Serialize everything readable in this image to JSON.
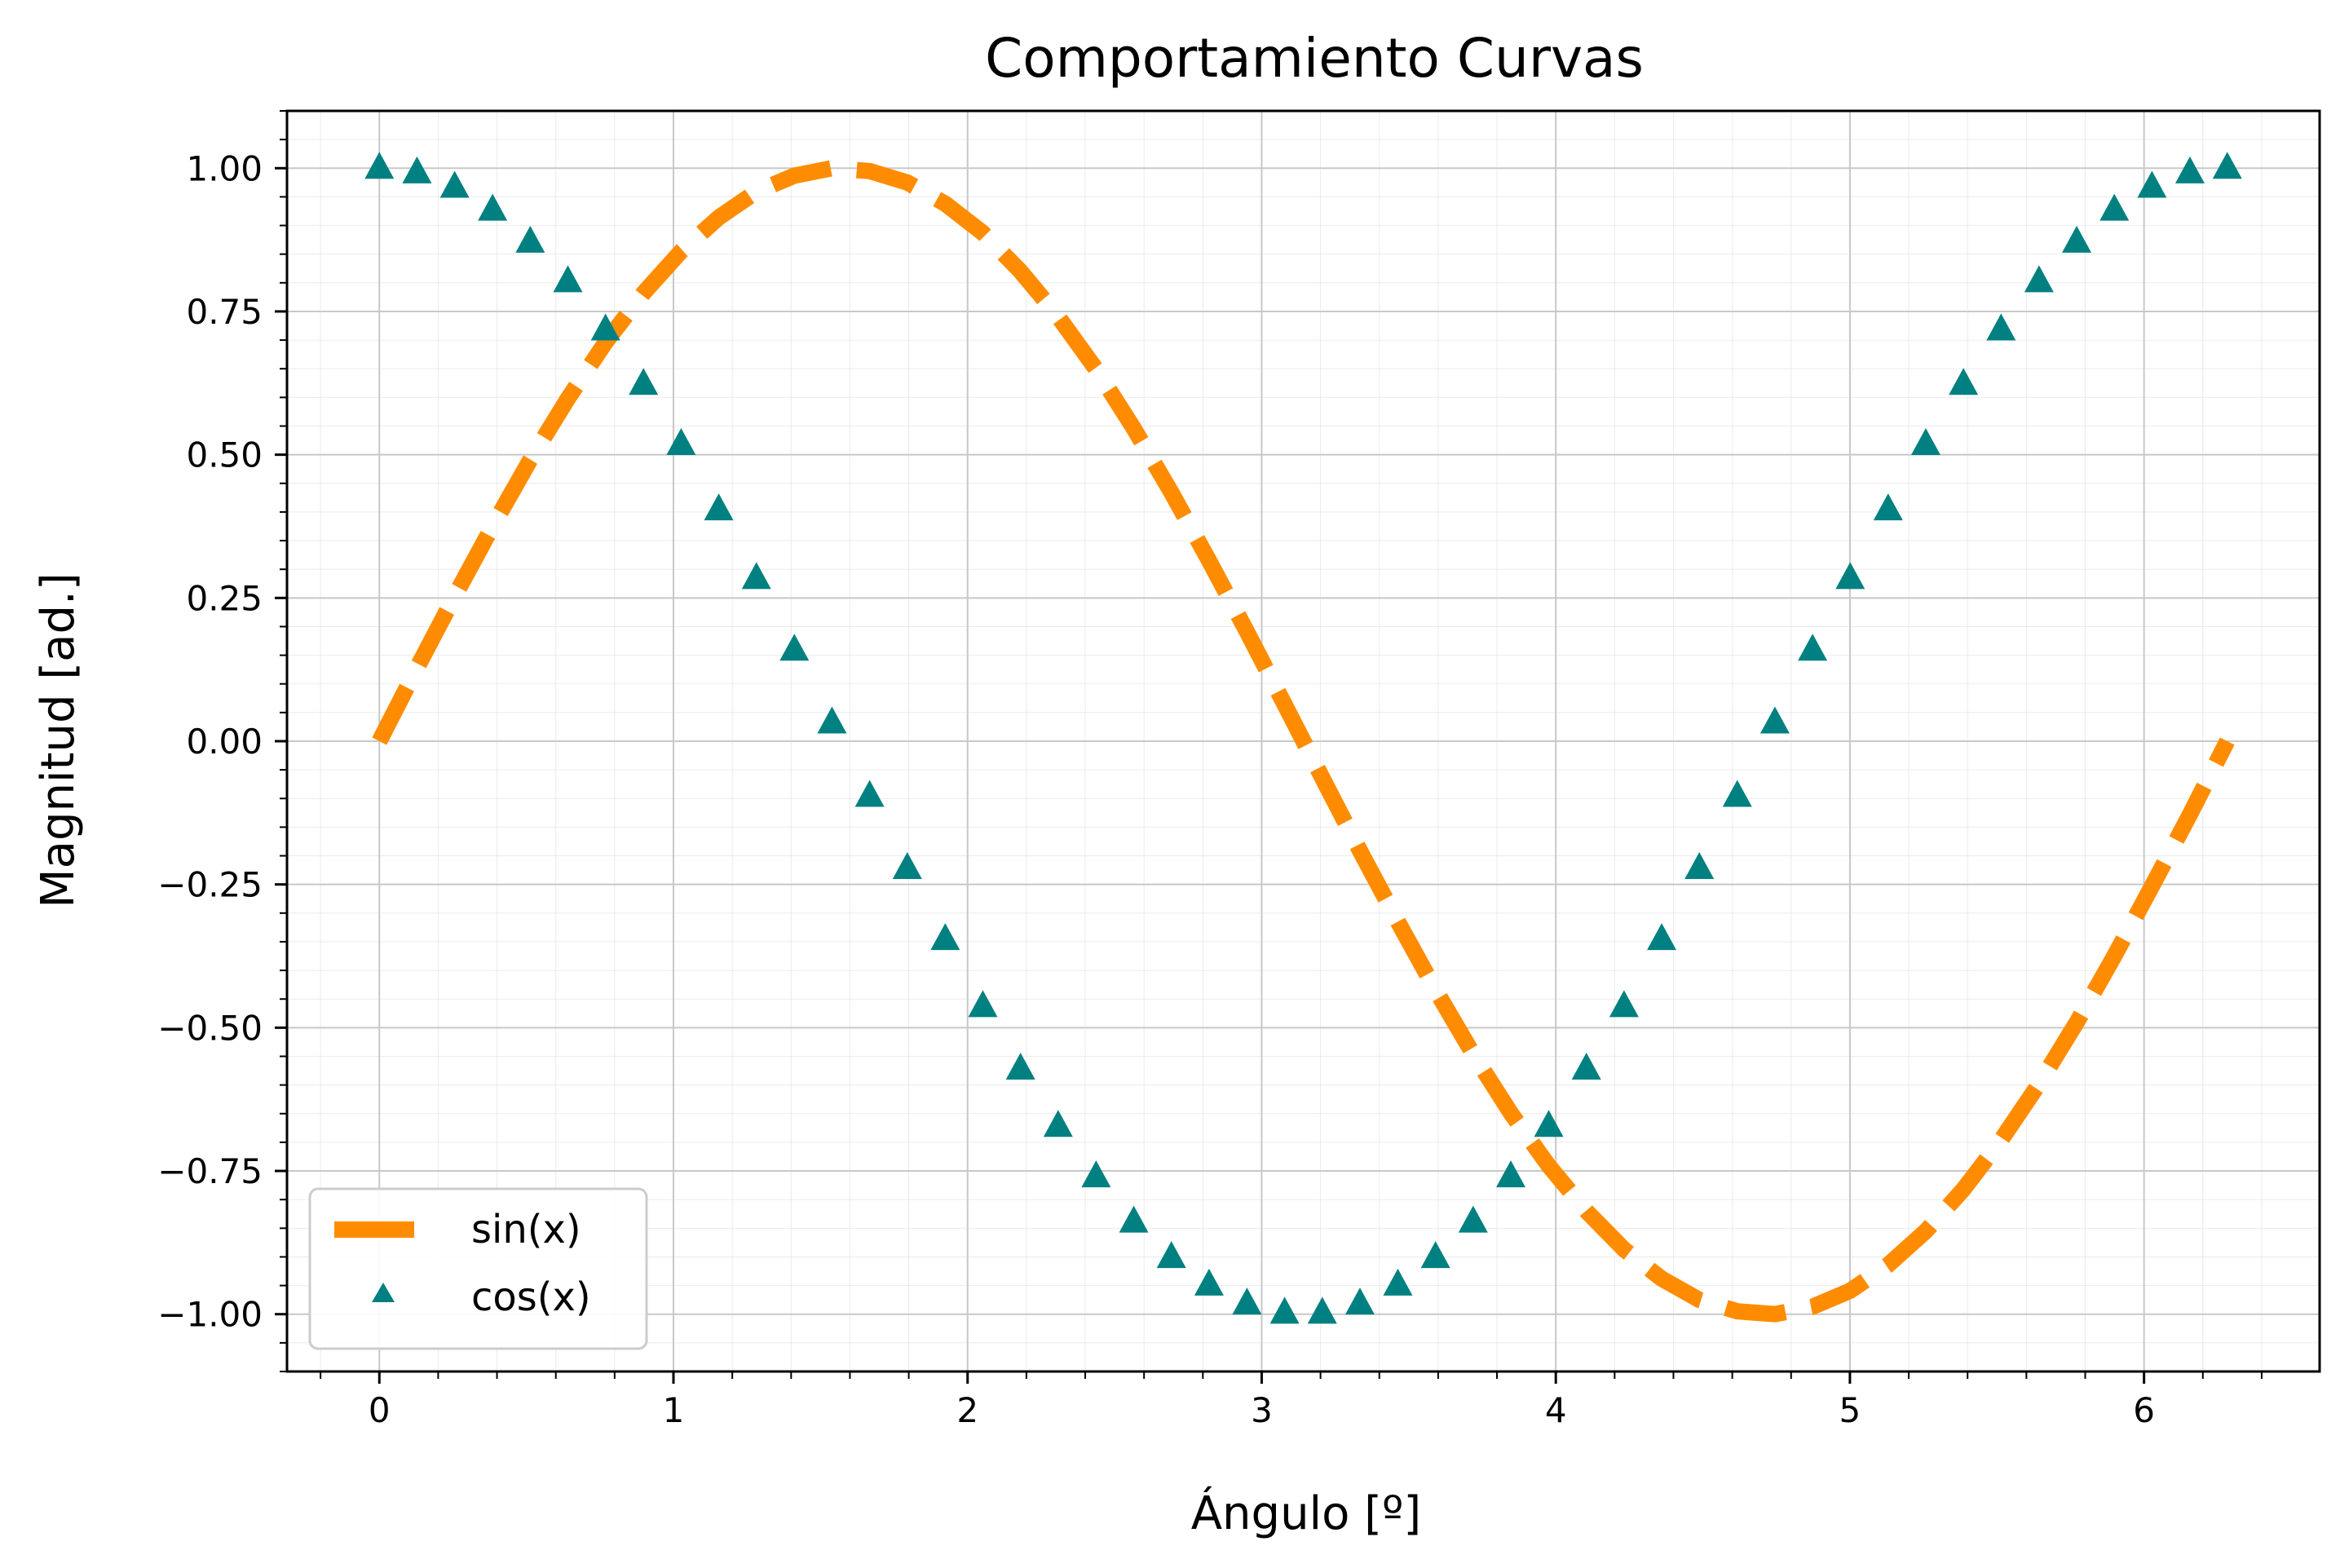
{
  "chart_data": {
    "type": "line",
    "title": "Comportamiento Curvas",
    "xlabel": "Ángulo [º]",
    "ylabel": "Magnitud [ad.]",
    "xlim": [
      -0.314,
      6.597
    ],
    "ylim": [
      -1.1,
      1.1
    ],
    "x_major_ticks": [
      0,
      1,
      2,
      3,
      4,
      5,
      6
    ],
    "x_tick_labels": [
      "0",
      "1",
      "2",
      "3",
      "4",
      "5",
      "6"
    ],
    "x_minor_step": 0.2,
    "y_major_ticks": [
      1.0,
      0.75,
      0.5,
      0.25,
      0.0,
      -0.25,
      -0.5,
      -0.75,
      -1.0
    ],
    "y_tick_labels": [
      "1.00",
      "0.75",
      "0.50",
      "0.25",
      "0.00",
      "−0.25",
      "−0.50",
      "−0.75",
      "−1.00"
    ],
    "y_minor_step": 0.05,
    "grid": true,
    "minor_grid": true,
    "legend_position": "lower-left",
    "x": [
      0.0,
      0.128,
      0.256,
      0.385,
      0.513,
      0.641,
      0.769,
      0.898,
      1.026,
      1.154,
      1.282,
      1.411,
      1.539,
      1.667,
      1.795,
      1.924,
      2.052,
      2.18,
      2.308,
      2.437,
      2.565,
      2.693,
      2.821,
      2.95,
      3.078,
      3.206,
      3.334,
      3.463,
      3.591,
      3.719,
      3.847,
      3.976,
      4.104,
      4.232,
      4.36,
      4.488,
      4.617,
      4.745,
      4.873,
      5.001,
      5.13,
      5.258,
      5.386,
      5.514,
      5.643,
      5.771,
      5.899,
      6.027,
      6.156,
      6.283
    ],
    "series": [
      {
        "name": "sin(x)",
        "style": "dashed-line",
        "color": "#ff8c00",
        "values": [
          0.0,
          0.128,
          0.253,
          0.375,
          0.491,
          0.598,
          0.696,
          0.782,
          0.855,
          0.914,
          0.959,
          0.987,
          1.0,
          0.995,
          0.975,
          0.938,
          0.887,
          0.82,
          0.741,
          0.649,
          0.546,
          0.434,
          0.315,
          0.191,
          0.064,
          -0.064,
          -0.191,
          -0.315,
          -0.434,
          -0.546,
          -0.649,
          -0.741,
          -0.82,
          -0.887,
          -0.938,
          -0.975,
          -0.995,
          -1.0,
          -0.987,
          -0.959,
          -0.914,
          -0.855,
          -0.782,
          -0.696,
          -0.598,
          -0.491,
          -0.375,
          -0.253,
          -0.128,
          0.0
        ]
      },
      {
        "name": "cos(x)",
        "style": "triangle-markers",
        "color": "#008080",
        "values": [
          1.0,
          0.992,
          0.967,
          0.927,
          0.871,
          0.802,
          0.718,
          0.623,
          0.518,
          0.404,
          0.284,
          0.159,
          0.032,
          -0.096,
          -0.222,
          -0.346,
          -0.463,
          -0.572,
          -0.672,
          -0.76,
          -0.839,
          -0.901,
          -0.949,
          -0.982,
          -0.998,
          -0.998,
          -0.982,
          -0.949,
          -0.901,
          -0.839,
          -0.76,
          -0.672,
          -0.572,
          -0.463,
          -0.346,
          -0.222,
          -0.096,
          0.032,
          0.159,
          0.284,
          0.404,
          0.518,
          0.623,
          0.718,
          0.802,
          0.871,
          0.927,
          0.967,
          0.992,
          1.0
        ]
      }
    ]
  }
}
